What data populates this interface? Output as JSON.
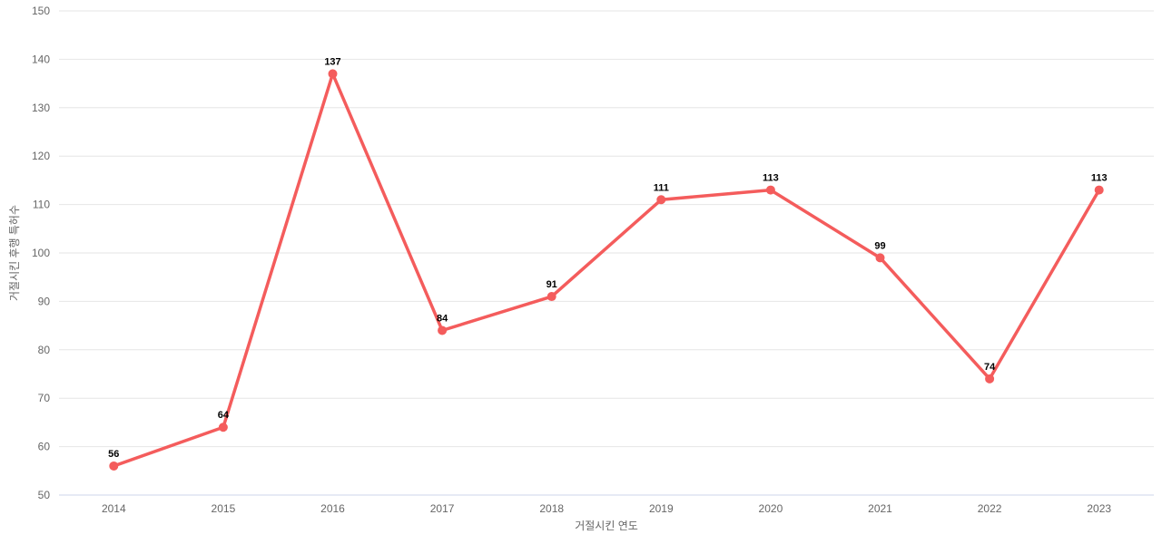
{
  "chart_data": {
    "type": "line",
    "categories": [
      "2014",
      "2015",
      "2016",
      "2017",
      "2018",
      "2019",
      "2020",
      "2021",
      "2022",
      "2023"
    ],
    "values": [
      56,
      64,
      137,
      84,
      91,
      111,
      113,
      99,
      74,
      113
    ],
    "series_name": "거절시킨 후행 특허수",
    "title": "",
    "xlabel": "거절시킨 연도",
    "ylabel": "거절시킨 후행 특허수",
    "ylim": [
      50,
      150
    ],
    "yticks": [
      50,
      60,
      70,
      80,
      90,
      100,
      110,
      120,
      130,
      140,
      150
    ],
    "grid": true,
    "legend_position": "none",
    "data_labels_visible": true,
    "colors": {
      "line": "#f45c5c",
      "marker": "#f45c5c",
      "grid_line": "#e6e6e6",
      "axis_line": "#ccd6eb",
      "tick_label": "#666666",
      "axis_title": "#666666",
      "data_label": "#000000",
      "background": "#ffffff"
    }
  }
}
